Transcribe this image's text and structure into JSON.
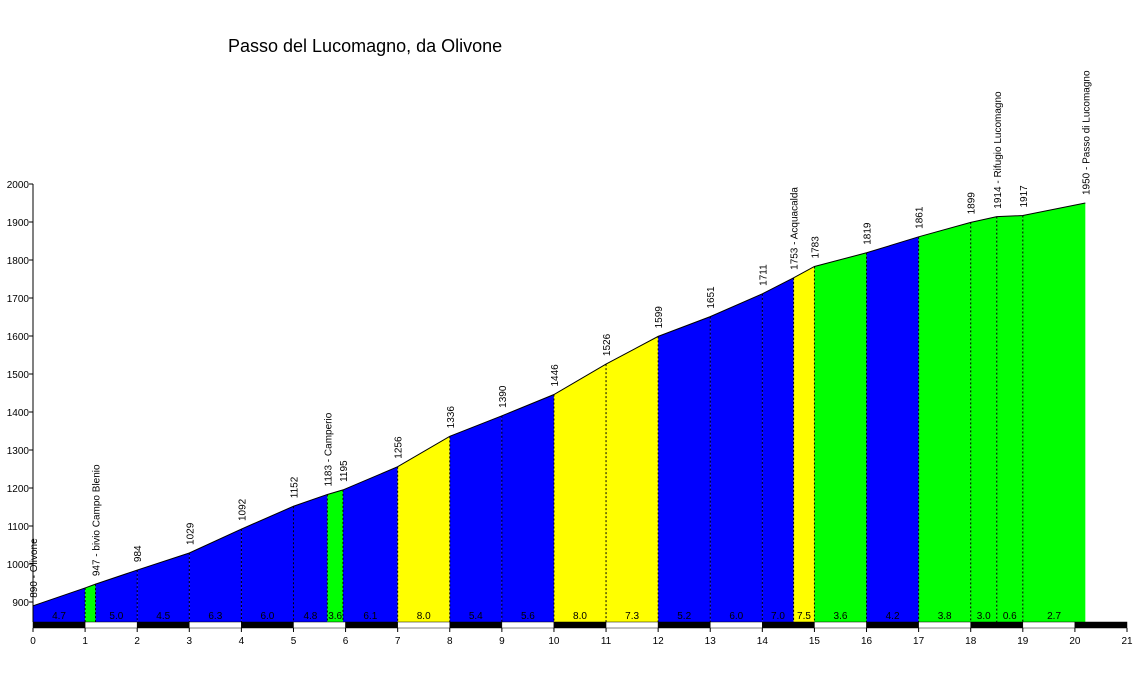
{
  "chart_data": {
    "type": "area",
    "title": "Passo del Lucomagno, da Olivone",
    "xlabel": "",
    "ylabel": "",
    "xlim": [
      0,
      21
    ],
    "ylim": [
      840,
      2000
    ],
    "x_ticks": [
      0,
      1,
      2,
      3,
      4,
      5,
      6,
      7,
      8,
      9,
      10,
      11,
      12,
      13,
      14,
      15,
      16,
      17,
      18,
      19,
      20,
      21
    ],
    "y_ticks": [
      900,
      1000,
      1100,
      1200,
      1300,
      1400,
      1500,
      1600,
      1700,
      1800,
      1900,
      2000
    ],
    "grade_colors": {
      "low": "#00ff00",
      "medium": "#0000ff",
      "high": "#ffff00"
    },
    "points": [
      {
        "x": 0,
        "alt": 890,
        "label": "890 - Olivone"
      },
      {
        "x": 1.0,
        "alt": 937,
        "label": ""
      },
      {
        "x": 1.2,
        "alt": 947,
        "label": "947 - bivio Campo Blenio"
      },
      {
        "x": 2,
        "alt": 984,
        "label": "984"
      },
      {
        "x": 3,
        "alt": 1029,
        "label": "1029"
      },
      {
        "x": 4,
        "alt": 1092,
        "label": "1092"
      },
      {
        "x": 5,
        "alt": 1152,
        "label": "1152"
      },
      {
        "x": 5.65,
        "alt": 1183,
        "label": "1183 - Camperio"
      },
      {
        "x": 5.95,
        "alt": 1195,
        "label": "1195"
      },
      {
        "x": 7,
        "alt": 1256,
        "label": "1256"
      },
      {
        "x": 8,
        "alt": 1336,
        "label": "1336"
      },
      {
        "x": 9,
        "alt": 1390,
        "label": "1390"
      },
      {
        "x": 10,
        "alt": 1446,
        "label": "1446"
      },
      {
        "x": 11,
        "alt": 1526,
        "label": "1526"
      },
      {
        "x": 12,
        "alt": 1599,
        "label": "1599"
      },
      {
        "x": 13,
        "alt": 1651,
        "label": "1651"
      },
      {
        "x": 14,
        "alt": 1711,
        "label": "1711"
      },
      {
        "x": 14.6,
        "alt": 1753,
        "label": "1753 - Acquacalda"
      },
      {
        "x": 15,
        "alt": 1783,
        "label": "1783"
      },
      {
        "x": 16,
        "alt": 1819,
        "label": "1819"
      },
      {
        "x": 17,
        "alt": 1861,
        "label": "1861"
      },
      {
        "x": 18,
        "alt": 1899,
        "label": "1899"
      },
      {
        "x": 18.5,
        "alt": 1914,
        "label": "1914 - Rifugio Lucomagno"
      },
      {
        "x": 19,
        "alt": 1917,
        "label": "1917"
      },
      {
        "x": 20.2,
        "alt": 1950,
        "label": "1950 - Passo di Lucomagno"
      }
    ],
    "segments": [
      {
        "from": 0,
        "to": 1.0,
        "grade": "4.7",
        "color": "medium"
      },
      {
        "from": 1.0,
        "to": 1.2,
        "grade": "",
        "color": "low"
      },
      {
        "from": 1.2,
        "to": 2,
        "grade": "5.0",
        "color": "medium"
      },
      {
        "from": 2,
        "to": 3,
        "grade": "4.5",
        "color": "medium"
      },
      {
        "from": 3,
        "to": 4,
        "grade": "6.3",
        "color": "medium"
      },
      {
        "from": 4,
        "to": 5,
        "grade": "6.0",
        "color": "medium"
      },
      {
        "from": 5,
        "to": 5.65,
        "grade": "4.8",
        "color": "medium"
      },
      {
        "from": 5.65,
        "to": 5.95,
        "grade": "3.6",
        "color": "low"
      },
      {
        "from": 5.95,
        "to": 7,
        "grade": "6.1",
        "color": "medium"
      },
      {
        "from": 7,
        "to": 8,
        "grade": "8.0",
        "color": "high"
      },
      {
        "from": 8,
        "to": 9,
        "grade": "5.4",
        "color": "medium"
      },
      {
        "from": 9,
        "to": 10,
        "grade": "5.6",
        "color": "medium"
      },
      {
        "from": 10,
        "to": 11,
        "grade": "8.0",
        "color": "high"
      },
      {
        "from": 11,
        "to": 12,
        "grade": "7.3",
        "color": "high"
      },
      {
        "from": 12,
        "to": 13,
        "grade": "5.2",
        "color": "medium"
      },
      {
        "from": 13,
        "to": 14,
        "grade": "6.0",
        "color": "medium"
      },
      {
        "from": 14,
        "to": 14.6,
        "grade": "7.0",
        "color": "medium"
      },
      {
        "from": 14.6,
        "to": 15,
        "grade": "7.5",
        "color": "high"
      },
      {
        "from": 15,
        "to": 16,
        "grade": "3.6",
        "color": "low"
      },
      {
        "from": 16,
        "to": 17,
        "grade": "4.2",
        "color": "medium"
      },
      {
        "from": 17,
        "to": 18,
        "grade": "3.8",
        "color": "low"
      },
      {
        "from": 18,
        "to": 18.5,
        "grade": "3.0",
        "color": "low"
      },
      {
        "from": 18.5,
        "to": 19,
        "grade": "0.6",
        "color": "low"
      },
      {
        "from": 19,
        "to": 20.2,
        "grade": "2.7",
        "color": "low"
      }
    ]
  }
}
